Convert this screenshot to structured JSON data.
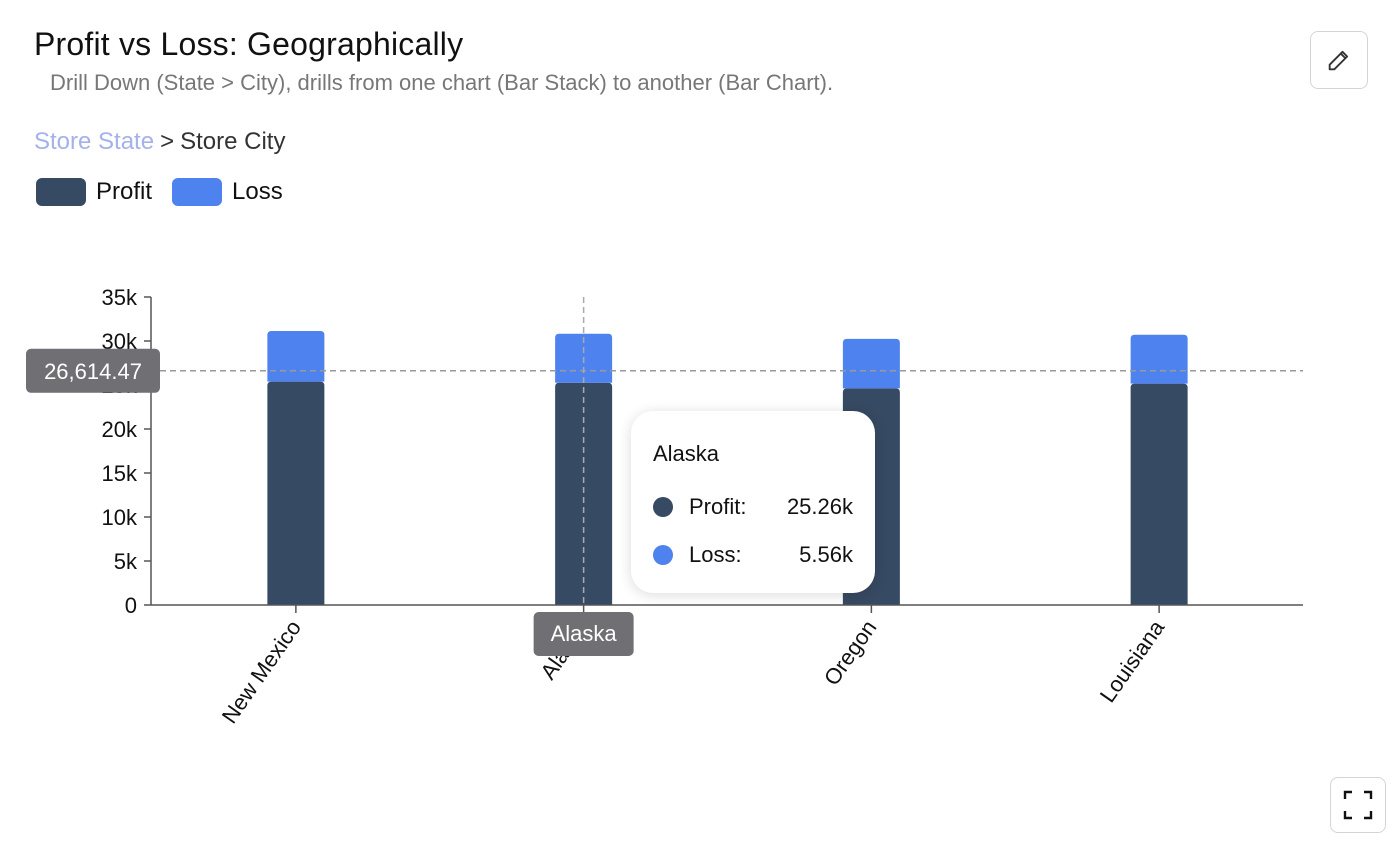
{
  "header": {
    "title": "Profit vs Loss: Geographically",
    "subtitle": "Drill Down (State > City), drills from one chart (Bar Stack) to another (Bar Chart)."
  },
  "breadcrumb": {
    "items": [
      "Store State",
      "Store City"
    ],
    "separator": ">"
  },
  "icons": {
    "edit": "pencil-icon",
    "fullscreen": "fullscreen-icon"
  },
  "colors": {
    "profit": "#374a63",
    "loss": "#4e82ee",
    "crumb_link": "#a5b1ea"
  },
  "chart_data": {
    "type": "bar",
    "stacked": true,
    "categories": [
      "New Mexico",
      "Alaska",
      "Oregon",
      "Louisiana"
    ],
    "series": [
      {
        "name": "Profit",
        "values": [
          25380,
          25260,
          24620,
          25150
        ]
      },
      {
        "name": "Loss",
        "values": [
          5760,
          5560,
          5620,
          5560
        ]
      }
    ],
    "ylim": [
      0,
      35000
    ],
    "yticks": [
      "0",
      "5k",
      "10k",
      "15k",
      "20k",
      "25k",
      "30k",
      "35k"
    ],
    "legend": "top-left",
    "grid": false,
    "crosshair": {
      "y_value": 26614.47,
      "y_label": "26,614.47",
      "x_category": "Alaska",
      "x_label": "Alaska"
    },
    "tooltip": {
      "title": "Alaska",
      "rows": [
        {
          "label": "Profit:",
          "value": "25.26k"
        },
        {
          "label": "Loss:",
          "value": "5.56k"
        }
      ]
    }
  }
}
